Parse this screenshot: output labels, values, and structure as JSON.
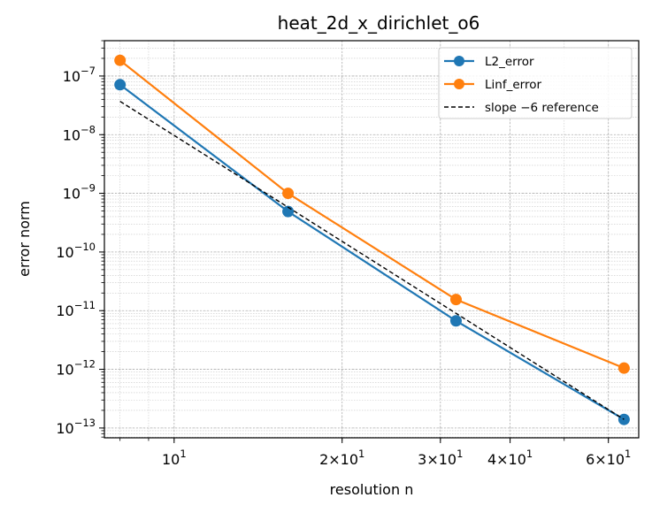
{
  "chart_data": {
    "type": "line",
    "title": "heat_2d_x_dirichlet_o6",
    "xlabel": "resolution n",
    "ylabel": "error norm",
    "xscale": "log",
    "yscale": "log",
    "xlim": [
      7.5,
      68
    ],
    "ylim": [
      6.8e-14,
      4e-07
    ],
    "grid": true,
    "legend_position": "top-right",
    "x": [
      8,
      16,
      32,
      64
    ],
    "series": [
      {
        "name": "L2_error",
        "color": "#1f77b4",
        "marker": "circle",
        "style": "solid",
        "values": [
          7.1e-08,
          4.9e-10,
          6.7e-12,
          1.4e-13
        ]
      },
      {
        "name": "Linf_error",
        "color": "#ff7f0e",
        "marker": "circle",
        "style": "solid",
        "values": [
          1.85e-07,
          1e-09,
          1.55e-11,
          1.05e-12
        ]
      },
      {
        "name": "slope −6 reference",
        "color": "#000000",
        "marker": "none",
        "style": "dashed",
        "values": [
          3.7e-08,
          5.8e-10,
          9e-12,
          1.4e-13
        ]
      }
    ],
    "x_ticks": [
      {
        "value": 10,
        "label": "10",
        "exp": "1"
      },
      {
        "value": 20,
        "label": "2×10",
        "exp": "1"
      },
      {
        "value": 30,
        "label": "3×10",
        "exp": "1"
      },
      {
        "value": 40,
        "label": "4×10",
        "exp": "1"
      },
      {
        "value": 60,
        "label": "6×10",
        "exp": "1"
      }
    ],
    "y_ticks": [
      {
        "value": 1e-07,
        "label": "10",
        "exp": "−7"
      },
      {
        "value": 1e-08,
        "label": "10",
        "exp": "−8"
      },
      {
        "value": 1e-09,
        "label": "10",
        "exp": "−9"
      },
      {
        "value": 1e-10,
        "label": "10",
        "exp": "−10"
      },
      {
        "value": 1e-11,
        "label": "10",
        "exp": "−11"
      },
      {
        "value": 1e-12,
        "label": "10",
        "exp": "−12"
      },
      {
        "value": 1e-13,
        "label": "10",
        "exp": "−13"
      }
    ]
  }
}
